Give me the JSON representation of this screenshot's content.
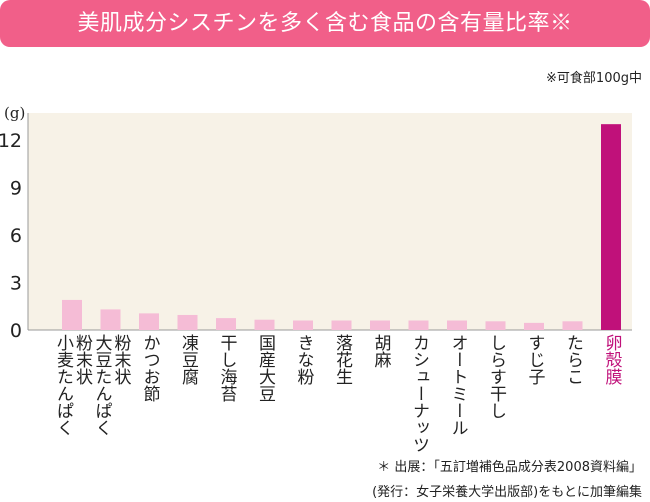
{
  "title": "美肌成分シスチンを多く含む食品の含有量比率※",
  "note": "※可食部100g中",
  "footnote_source": "＊ 出展：「五訂増補色品成分表2008資料編」",
  "footnote_publisher": "(発行：女子栄養大学出版部)をもとに加筆編集",
  "colors": {
    "bar": "#f5bcd6",
    "highlight": "#c0117a",
    "plot_bg": "#f7f2e7",
    "title_bg": "#f15f89"
  },
  "chart_data": {
    "type": "bar",
    "title": "美肌成分シスチンを多く含む食品の含有量比率※",
    "ylabel": "(g)",
    "ylim": [
      0,
      13.5
    ],
    "yticks": [
      0,
      3,
      6,
      9,
      12
    ],
    "grid": false,
    "categories": [
      "粉末状\n小麦たんぱく",
      "粉末状\n大豆たんぱく",
      "かつお節",
      "凍豆腐",
      "干し海苔",
      "国産大豆",
      "きな粉",
      "落花生",
      "胡麻",
      "カシューナッツ",
      "オートミール",
      "しらす干し",
      "すじ子",
      "たらこ",
      "卵殻膜"
    ],
    "values": [
      1.9,
      1.3,
      1.05,
      0.95,
      0.75,
      0.65,
      0.6,
      0.6,
      0.6,
      0.6,
      0.6,
      0.55,
      0.45,
      0.55,
      13.0
    ],
    "highlight": "卵殻膜"
  }
}
